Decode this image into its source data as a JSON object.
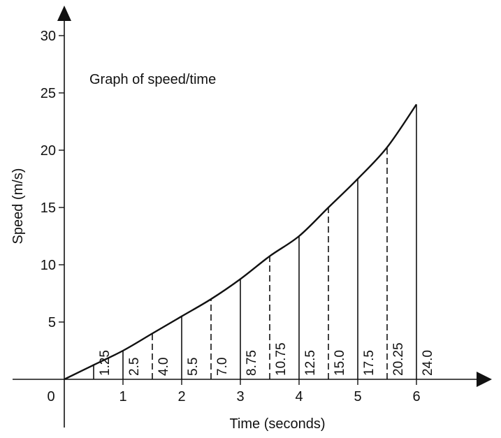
{
  "chart_data": {
    "type": "line",
    "title": "Graph of speed/time",
    "xlabel": "Time (seconds)",
    "ylabel": "Speed (m/s)",
    "xlim": [
      0,
      6
    ],
    "ylim": [
      0,
      30
    ],
    "origin_label": "0",
    "x_ticks": [
      "1",
      "2",
      "3",
      "4",
      "5",
      "6"
    ],
    "y_ticks": [
      "5",
      "10",
      "15",
      "20",
      "25",
      "30"
    ],
    "grid": false,
    "series": [
      {
        "x": [
          0,
          0.5,
          1,
          1.5,
          2,
          2.5,
          3,
          3.5,
          4,
          4.5,
          5,
          5.5,
          6
        ],
        "values": [
          0,
          1.25,
          2.5,
          4.0,
          5.5,
          7.0,
          8.75,
          10.75,
          12.5,
          15.0,
          17.5,
          20.25,
          24.0
        ]
      }
    ],
    "ordinates": [
      {
        "x": 0.5,
        "label": "1.25",
        "style": "solid"
      },
      {
        "x": 1,
        "label": "2.5",
        "style": "solid"
      },
      {
        "x": 1.5,
        "label": "4.0",
        "style": "dashed"
      },
      {
        "x": 2,
        "label": "5.5",
        "style": "solid"
      },
      {
        "x": 2.5,
        "label": "7.0",
        "style": "dashed"
      },
      {
        "x": 3,
        "label": "8.75",
        "style": "solid"
      },
      {
        "x": 3.5,
        "label": "10.75",
        "style": "dashed"
      },
      {
        "x": 4,
        "label": "12.5",
        "style": "solid"
      },
      {
        "x": 4.5,
        "label": "15.0",
        "style": "dashed"
      },
      {
        "x": 5,
        "label": "17.5",
        "style": "solid"
      },
      {
        "x": 5.5,
        "label": "20.25",
        "style": "dashed"
      },
      {
        "x": 6,
        "label": "24.0",
        "style": "solid"
      }
    ]
  }
}
